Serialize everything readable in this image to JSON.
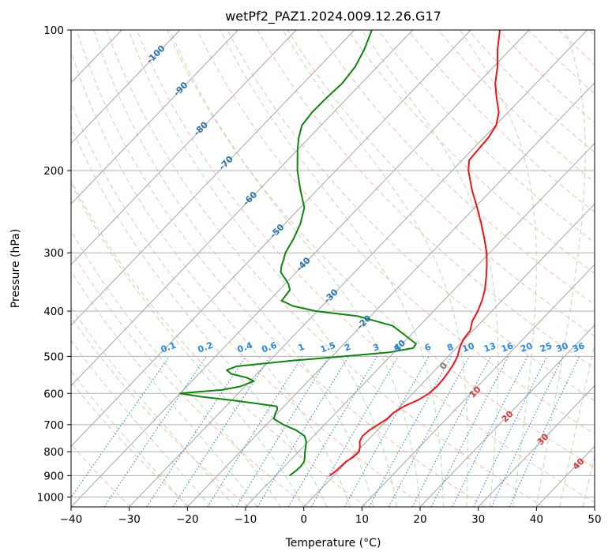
{
  "chart_data": {
    "type": "line",
    "title": "wetPf2_PAZ1.2024.009.12.26.G17",
    "xlabel": "Temperature (°C)",
    "ylabel": "Pressure (hPa)",
    "xlim": [
      -40,
      50
    ],
    "ylim": [
      1050,
      100
    ],
    "y_scale": "log",
    "skew": "skew-T (isotherms slanted ~45°)",
    "grid": true,
    "x_ticks": [
      "−40",
      "−30",
      "−20",
      "−10",
      "0",
      "10",
      "20",
      "30",
      "40",
      "50"
    ],
    "y_ticks": [
      "100",
      "200",
      "300",
      "400",
      "500",
      "600",
      "700",
      "800",
      "900",
      "1000"
    ],
    "colors": {
      "temperature": "#e8141b",
      "dewpoint": "#118311",
      "isotherm": "#a6a6a6",
      "dry_adiabat": "#f8a88c",
      "moist_adiabat": "#9ed19e",
      "mixing_ratio": "#2a86d9",
      "wetbulb_label": "#d63a3a",
      "isotherm_label": "#2c74a8"
    },
    "series": [
      {
        "name": "",
        "role": "temperature",
        "points": [
          {
            "p": 900,
            "t": -0.7
          },
          {
            "p": 880,
            "t": -0.4
          },
          {
            "p": 860,
            "t": -0.3
          },
          {
            "p": 840,
            "t": -0.2
          },
          {
            "p": 820,
            "t": 0.3
          },
          {
            "p": 800,
            "t": 0.4
          },
          {
            "p": 780,
            "t": -0.3
          },
          {
            "p": 760,
            "t": -1.2
          },
          {
            "p": 740,
            "t": -1.6
          },
          {
            "p": 720,
            "t": -1.4
          },
          {
            "p": 700,
            "t": -0.8
          },
          {
            "p": 680,
            "t": -0.2
          },
          {
            "p": 660,
            "t": -0.1
          },
          {
            "p": 640,
            "t": 0.6
          },
          {
            "p": 620,
            "t": 2.0
          },
          {
            "p": 600,
            "t": 2.8
          },
          {
            "p": 580,
            "t": 3.0
          },
          {
            "p": 560,
            "t": 2.9
          },
          {
            "p": 540,
            "t": 2.6
          },
          {
            "p": 520,
            "t": 2.2
          },
          {
            "p": 500,
            "t": 1.6
          },
          {
            "p": 480,
            "t": 0.6
          },
          {
            "p": 460,
            "t": -0.2
          },
          {
            "p": 440,
            "t": -0.5
          },
          {
            "p": 420,
            "t": -1.7
          },
          {
            "p": 400,
            "t": -2.4
          },
          {
            "p": 380,
            "t": -3.4
          },
          {
            "p": 360,
            "t": -4.7
          },
          {
            "p": 340,
            "t": -6.4
          },
          {
            "p": 320,
            "t": -8.3
          },
          {
            "p": 300,
            "t": -10.5
          },
          {
            "p": 280,
            "t": -13.2
          },
          {
            "p": 260,
            "t": -16.2
          },
          {
            "p": 240,
            "t": -19.6
          },
          {
            "p": 220,
            "t": -23.4
          },
          {
            "p": 200,
            "t": -27.2
          },
          {
            "p": 190,
            "t": -28.8
          },
          {
            "p": 180,
            "t": -29.0
          },
          {
            "p": 170,
            "t": -29.2
          },
          {
            "p": 160,
            "t": -29.9
          },
          {
            "p": 150,
            "t": -31.6
          },
          {
            "p": 140,
            "t": -34.3
          },
          {
            "p": 130,
            "t": -37.0
          },
          {
            "p": 120,
            "t": -39.3
          },
          {
            "p": 110,
            "t": -42.2
          },
          {
            "p": 100,
            "t": -45.0
          }
        ]
      },
      {
        "name": "",
        "role": "dewpoint",
        "points": [
          {
            "p": 900,
            "t": -7.6
          },
          {
            "p": 880,
            "t": -7.3
          },
          {
            "p": 860,
            "t": -7.2
          },
          {
            "p": 840,
            "t": -7.4
          },
          {
            "p": 820,
            "t": -8.1
          },
          {
            "p": 800,
            "t": -8.9
          },
          {
            "p": 780,
            "t": -9.6
          },
          {
            "p": 760,
            "t": -10.4
          },
          {
            "p": 740,
            "t": -11.6
          },
          {
            "p": 720,
            "t": -13.9
          },
          {
            "p": 700,
            "t": -17.1
          },
          {
            "p": 680,
            "t": -19.7
          },
          {
            "p": 660,
            "t": -20.4
          },
          {
            "p": 650,
            "t": -20.6
          },
          {
            "p": 640,
            "t": -21.2
          },
          {
            "p": 630,
            "t": -25.5
          },
          {
            "p": 620,
            "t": -30.2
          },
          {
            "p": 610,
            "t": -35.8
          },
          {
            "p": 600,
            "t": -40.0
          },
          {
            "p": 595,
            "t": -37.0
          },
          {
            "p": 590,
            "t": -33.4
          },
          {
            "p": 580,
            "t": -30.8
          },
          {
            "p": 565,
            "t": -29.3
          },
          {
            "p": 555,
            "t": -31.2
          },
          {
            "p": 545,
            "t": -34.4
          },
          {
            "p": 535,
            "t": -35.8
          },
          {
            "p": 525,
            "t": -34.8
          },
          {
            "p": 510,
            "t": -25.8
          },
          {
            "p": 500,
            "t": -18.0
          },
          {
            "p": 490,
            "t": -10.8
          },
          {
            "p": 480,
            "t": -7.4
          },
          {
            "p": 470,
            "t": -7.6
          },
          {
            "p": 460,
            "t": -9.3
          },
          {
            "p": 450,
            "t": -11.0
          },
          {
            "p": 430,
            "t": -14.6
          },
          {
            "p": 410,
            "t": -22.2
          },
          {
            "p": 400,
            "t": -30.2
          },
          {
            "p": 390,
            "t": -35.0
          },
          {
            "p": 380,
            "t": -37.8
          },
          {
            "p": 370,
            "t": -38.0
          },
          {
            "p": 360,
            "t": -38.2
          },
          {
            "p": 350,
            "t": -39.4
          },
          {
            "p": 340,
            "t": -41.0
          },
          {
            "p": 330,
            "t": -42.7
          },
          {
            "p": 320,
            "t": -43.6
          },
          {
            "p": 310,
            "t": -44.3
          },
          {
            "p": 300,
            "t": -45.1
          },
          {
            "p": 280,
            "t": -46.0
          },
          {
            "p": 260,
            "t": -47.3
          },
          {
            "p": 240,
            "t": -49.3
          },
          {
            "p": 220,
            "t": -52.9
          },
          {
            "p": 200,
            "t": -56.6
          },
          {
            "p": 180,
            "t": -60.1
          },
          {
            "p": 170,
            "t": -61.8
          },
          {
            "p": 160,
            "t": -63.3
          },
          {
            "p": 150,
            "t": -63.7
          },
          {
            "p": 140,
            "t": -63.6
          },
          {
            "p": 130,
            "t": -63.3
          },
          {
            "p": 120,
            "t": -63.8
          },
          {
            "p": 110,
            "t": -65.1
          },
          {
            "p": 100,
            "t": -67.0
          }
        ]
      }
    ],
    "isotherm_labels": [
      {
        "text": "-100",
        "p": 113
      },
      {
        "text": "-90",
        "p": 134
      },
      {
        "text": "-80",
        "p": 163
      },
      {
        "text": "-70",
        "p": 193
      },
      {
        "text": "-60",
        "p": 230
      },
      {
        "text": "-50",
        "p": 270
      },
      {
        "text": "-40",
        "p": 318
      },
      {
        "text": "-30",
        "p": 372
      },
      {
        "text": "-20",
        "p": 423
      },
      {
        "text": "-10",
        "p": 478
      }
    ],
    "mixing_ratio_labels": [
      "0.1",
      "0.2",
      "0.4",
      "0.6",
      "1",
      "1.5",
      "2",
      "3",
      "4",
      "6",
      "8",
      "10",
      "13",
      "16",
      "20",
      "25",
      "30",
      "36"
    ],
    "wetbulb_labels": [
      "0",
      "10",
      "20",
      "30",
      "40"
    ]
  }
}
